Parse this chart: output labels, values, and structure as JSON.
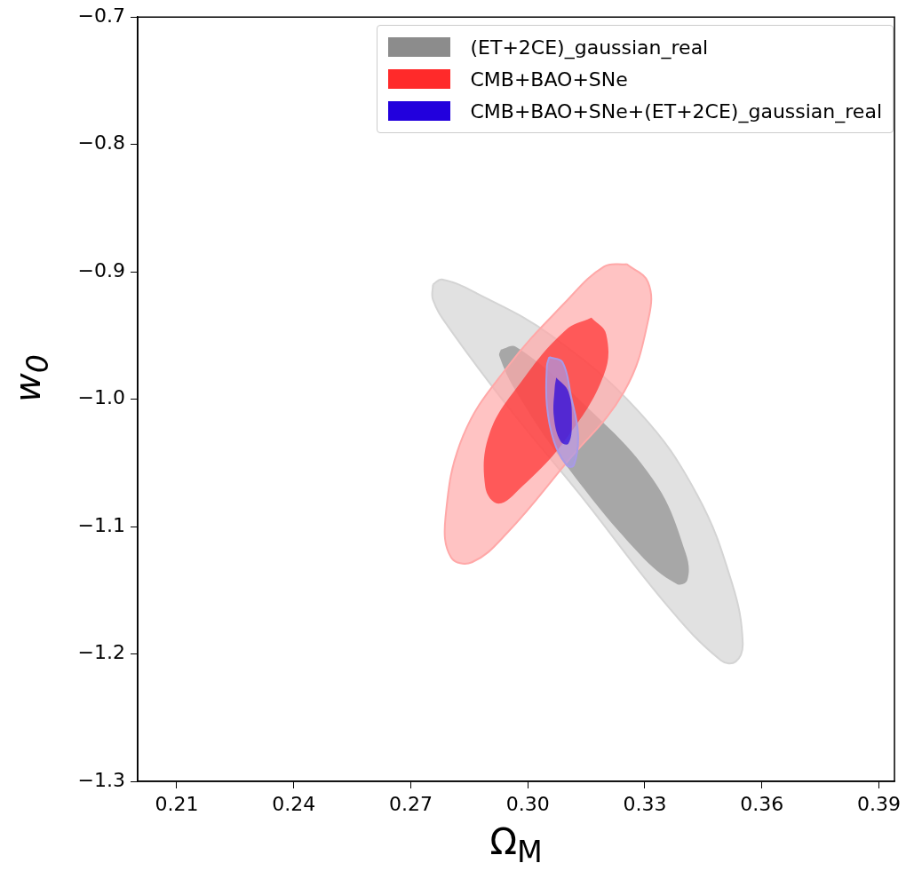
{
  "chart_data": {
    "type": "area",
    "xlabel": "Ω$_{M}$",
    "ylabel": "w$_{0}$",
    "xlim": [
      0.2,
      0.394
    ],
    "ylim": [
      -1.3,
      -0.7
    ],
    "xticks": [
      0.21,
      0.24,
      0.27,
      {
        "value": 0.3,
        "label": "0.30"
      },
      0.33,
      0.36,
      0.39
    ],
    "yticks": [
      {
        "value": -1.3,
        "label": "−1.3"
      },
      {
        "value": -1.2,
        "label": "−1.2"
      },
      {
        "value": -1.1,
        "label": "−1.1"
      },
      {
        "value": -1.0,
        "label": "−1.0"
      },
      {
        "value": -0.9,
        "label": "−0.9"
      },
      {
        "value": -0.8,
        "label": "−0.8"
      },
      {
        "value": -0.7,
        "label": "−0.7"
      }
    ],
    "grid": false,
    "legend": "top right",
    "series": [
      {
        "color": "#d4d4d4",
        "x": [
          0.2757,
          0.278,
          0.287,
          0.306,
          0.3285,
          0.3434,
          0.3524,
          0.3551,
          0.3533,
          0.3495,
          0.336,
          0.3134,
          0.2947,
          0.2796,
          0.2757
        ],
        "values": [
          -0.91,
          -0.906,
          -0.917,
          -0.95,
          -1.01,
          -1.075,
          -1.145,
          -1.191,
          -1.206,
          -1.205,
          -1.163,
          -1.075,
          -1.005,
          -0.943,
          -0.922
        ]
      },
      {
        "name": "(ET+2CE)_gaussian_real",
        "color": "#8c8c8c",
        "x": [
          0.2931,
          0.297,
          0.3134,
          0.3321,
          0.3405,
          0.3409,
          0.3382,
          0.3285,
          0.3096,
          0.297,
          0.2927
        ],
        "values": [
          -0.961,
          -0.959,
          -1.001,
          -1.063,
          -1.121,
          -1.142,
          -1.145,
          -1.121,
          -1.051,
          -0.994,
          -0.966
        ]
      },
      {
        "color": "#ffa8a8",
        "x": [
          0.3254,
          0.3308,
          0.331,
          0.3247,
          0.3096,
          0.2947,
          0.2857,
          0.2803,
          0.2789,
          0.2834,
          0.2947,
          0.3096,
          0.3195
        ],
        "values": [
          -0.894,
          -0.908,
          -0.936,
          -0.994,
          -1.051,
          -1.105,
          -1.128,
          -1.124,
          -1.093,
          -1.029,
          -0.975,
          -0.924,
          -0.896
        ]
      },
      {
        "name": "CMB+BAO+SNe",
        "color": "#ff2a2a",
        "x": [
          0.3163,
          0.3201,
          0.3195,
          0.3096,
          0.2984,
          0.2925,
          0.2891,
          0.2902,
          0.2984,
          0.3096
        ],
        "values": [
          -0.936,
          -0.949,
          -0.981,
          -1.032,
          -1.069,
          -1.082,
          -1.069,
          -1.027,
          -0.986,
          -0.946
        ]
      },
      {
        "color": "#a89ae8",
        "x": [
          0.3055,
          0.3089,
          0.3111,
          0.3129,
          0.3118,
          0.31,
          0.3067,
          0.3049,
          0.3049
        ],
        "values": [
          -0.967,
          -0.971,
          -0.998,
          -1.028,
          -1.052,
          -1.052,
          -1.033,
          -1.005,
          -0.974
        ]
      },
      {
        "name": "CMB+BAO+SNe+(ET+2CE)_gaussian_real",
        "color": "#2200dd",
        "x": [
          0.3073,
          0.3104,
          0.3113,
          0.3104,
          0.3084,
          0.3067,
          0.3069
        ],
        "values": [
          -0.983,
          -0.994,
          -1.019,
          -1.035,
          -1.033,
          -1.014,
          -0.991
        ]
      }
    ]
  }
}
